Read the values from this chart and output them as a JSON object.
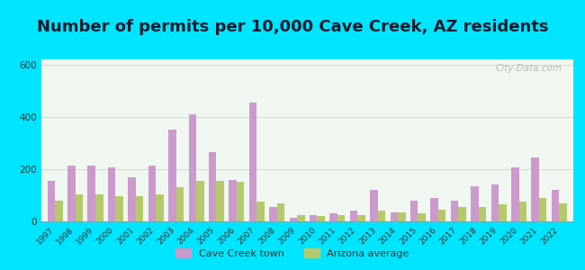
{
  "title": "Number of permits per 10,000 Cave Creek, AZ residents",
  "years": [
    1997,
    1998,
    1999,
    2000,
    2001,
    2002,
    2003,
    2004,
    2005,
    2006,
    2007,
    2008,
    2009,
    2010,
    2011,
    2012,
    2013,
    2014,
    2015,
    2016,
    2017,
    2018,
    2019,
    2020,
    2021,
    2022
  ],
  "cave_creek": [
    155,
    215,
    215,
    205,
    170,
    215,
    350,
    410,
    265,
    160,
    455,
    55,
    15,
    25,
    30,
    40,
    120,
    35,
    80,
    90,
    80,
    135,
    140,
    205,
    245,
    120
  ],
  "arizona_avg": [
    80,
    105,
    105,
    95,
    95,
    105,
    130,
    155,
    155,
    150,
    75,
    70,
    25,
    20,
    25,
    25,
    40,
    35,
    30,
    45,
    55,
    55,
    65,
    75,
    90,
    70
  ],
  "cave_creek_color": "#cc99cc",
  "arizona_color": "#b5c96a",
  "background_outer": "#00e5ff",
  "background_inner": "#f0f7f0",
  "grid_color": "#d0d0d0",
  "ylim": [
    0,
    620
  ],
  "yticks": [
    0,
    200,
    400,
    600
  ],
  "title_fontsize": 13,
  "title_color": "#1a1a2e",
  "legend_labels": [
    "Cave Creek town",
    "Arizona average"
  ],
  "watermark": "City-Data.com"
}
